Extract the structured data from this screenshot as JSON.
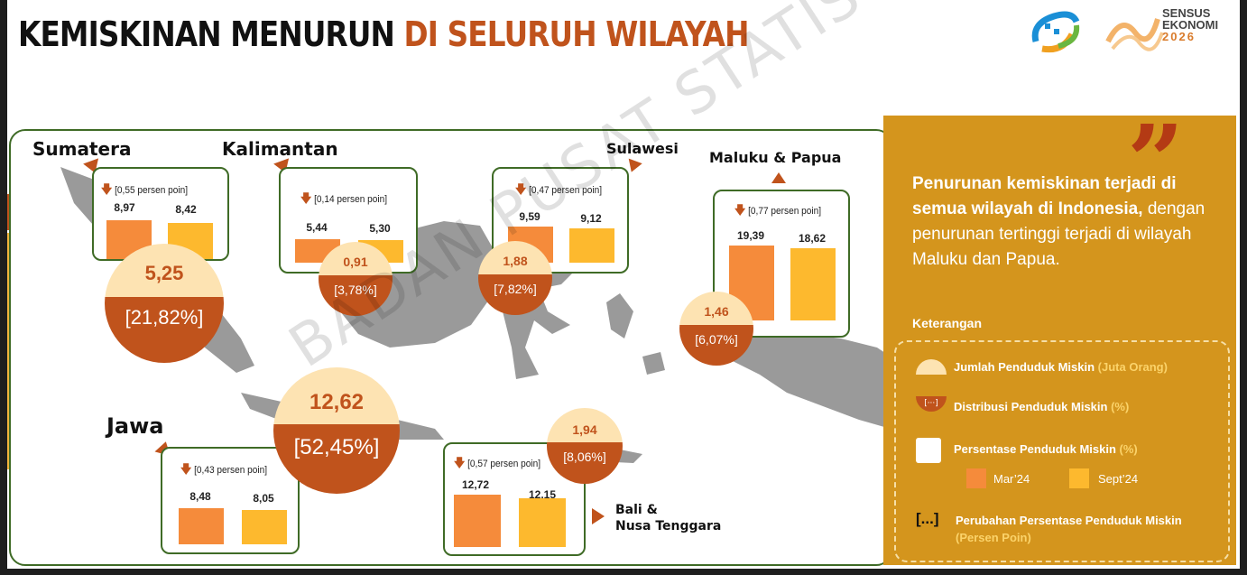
{
  "title": {
    "part1": "KEMISKINAN MENURUN",
    "part2": "DI SELURUH WILAYAH"
  },
  "logo": {
    "line1": "SENSUS",
    "line2": "EKONOMI",
    "year": "2026"
  },
  "watermark": "BADAN PUSAT STATISTIK",
  "colors": {
    "mar": "#f58b3b",
    "sep": "#fdb92e",
    "accent": "#c0531c",
    "panel": "#d4951d",
    "border": "#3f6b26"
  },
  "regions": [
    {
      "name": "Sumatera",
      "change": "[0,55 persen poin]",
      "mar": "8,97",
      "sep": "8,42",
      "poor": "5,25",
      "dist": "[21,82%]"
    },
    {
      "name": "Kalimantan",
      "change": "[0,14 persen poin]",
      "mar": "5,44",
      "sep": "5,30",
      "poor": "0,91",
      "dist": "[3,78%]"
    },
    {
      "name": "Sulawesi",
      "change": "[0,47 persen poin]",
      "mar": "9,59",
      "sep": "9,12",
      "poor": "1,88",
      "dist": "[7,82%]"
    },
    {
      "name": "Maluku & Papua",
      "change": "[0,77 persen poin]",
      "mar": "19,39",
      "sep": "18,62",
      "poor": "1,46",
      "dist": "[6,07%]"
    },
    {
      "name": "Jawa",
      "change": "[0,43 persen poin]",
      "mar": "8,48",
      "sep": "8,05",
      "poor": "12,62",
      "dist": "[52,45%]"
    },
    {
      "name_line1": "Bali &",
      "name_line2": "Nusa Tenggara",
      "change": "[0,57 persen poin]",
      "mar": "12,72",
      "sep": "12,15",
      "poor": "1,94",
      "dist": "[8,06%]"
    }
  ],
  "chart_data": {
    "type": "bar",
    "categories": [
      "Sumatera",
      "Kalimantan",
      "Sulawesi",
      "Maluku & Papua",
      "Jawa",
      "Bali & Nusa Tenggara"
    ],
    "series": [
      {
        "name": "Mar'24",
        "values": [
          8.97,
          5.44,
          9.59,
          19.39,
          8.48,
          12.72
        ]
      },
      {
        "name": "Sept'24",
        "values": [
          8.42,
          5.3,
          9.12,
          18.62,
          8.05,
          12.15
        ]
      }
    ],
    "change_percentage_points": [
      0.55,
      0.14,
      0.47,
      0.77,
      0.43,
      0.57
    ],
    "poor_population_million": [
      5.25,
      0.91,
      1.88,
      1.46,
      12.62,
      1.94
    ],
    "distribution_percent": [
      21.82,
      3.78,
      7.82,
      6.07,
      52.45,
      8.06
    ],
    "title": "KEMISKINAN MENURUN DI SELURUH WILAYAH"
  },
  "side": {
    "bold": "Penurunan kemiskinan terjadi di semua wilayah di Indonesia,",
    "rest": "dengan penurunan tertinggi terjadi di wilayah Maluku dan Papua."
  },
  "legend": {
    "title": "Keterangan",
    "items": [
      {
        "label": "Jumlah Penduduk Miskin",
        "unit": "(Juta Orang)"
      },
      {
        "label": "Distribusi Penduduk Miskin",
        "unit": "(%)",
        "symbol": "[···]"
      },
      {
        "label": "Persentase Penduduk Miskin",
        "unit": "(%)"
      },
      {
        "label": "Perubahan Persentase Penduduk Miskin",
        "unit": "(Persen Poin)",
        "symbol": "[...]"
      }
    ],
    "series": [
      "Mar’24",
      "Sept’24"
    ]
  }
}
